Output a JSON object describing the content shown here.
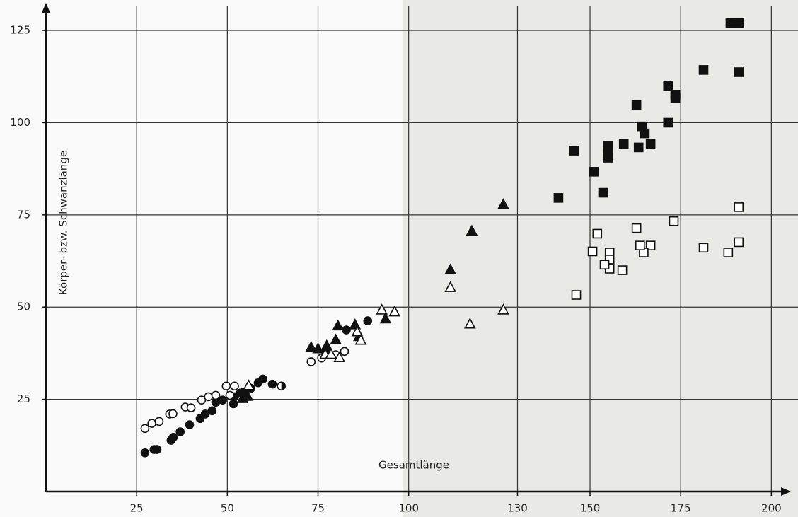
{
  "chart_data": {
    "type": "scatter",
    "xlabel": "Gesamtlänge",
    "ylabel": "Körper- bzw. Schwanzlänge",
    "xlim": [
      0,
      205
    ],
    "ylim": [
      0,
      130
    ],
    "xticks": [
      25,
      50,
      75,
      100,
      130,
      150,
      175,
      200
    ],
    "yticks": [
      25,
      50,
      75,
      100,
      125
    ],
    "grid": true,
    "series": [
      {
        "marker": "circle",
        "filled": true,
        "color": "#111111",
        "x": [
          27.3,
          29.8,
          30.6,
          34.5,
          35.1,
          37,
          39.6,
          42.5,
          43.9,
          45.8,
          46.8,
          48.7,
          51.7,
          52,
          53.6,
          54.6,
          56.5,
          58.5,
          59.8,
          62.4,
          77,
          82.8,
          88.7
        ],
        "values": [
          10.5,
          11.4,
          11.4,
          13.9,
          14.7,
          16.2,
          18.1,
          19.8,
          21,
          21.9,
          24.2,
          24.8,
          23.8,
          25.7,
          26.7,
          27,
          28,
          29.5,
          30.5,
          29.1,
          38,
          43.8,
          46.3
        ]
      },
      {
        "marker": "circle",
        "filled": false,
        "color": "#111111",
        "x": [
          27.3,
          29.2,
          31.2,
          34.1,
          35,
          38.4,
          40,
          42.9,
          44.8,
          46.8,
          49.7,
          52,
          50.7,
          73.1,
          76,
          79.9,
          82.3
        ],
        "values": [
          17.1,
          18.5,
          19,
          21,
          21.1,
          22.9,
          22.7,
          24.8,
          25.7,
          26.1,
          28.6,
          28.6,
          26.1,
          35.2,
          36.2,
          37.1,
          38
        ]
      },
      {
        "marker": "halfcircle",
        "filled": true,
        "color": "#111111",
        "x": [
          64.9
        ],
        "values": [
          28.6
        ]
      },
      {
        "marker": "triangle",
        "filled": true,
        "color": "#111111",
        "x": [
          54.2,
          55.6,
          73.1,
          75,
          77.4,
          79.9,
          80.5,
          85.2,
          86.3,
          93.6,
          111.5,
          117.4,
          126.1
        ],
        "values": [
          25.1,
          25.7,
          39,
          38.6,
          39.4,
          41,
          44.8,
          45.1,
          41.9,
          46.7,
          60,
          70.5,
          77.7
        ]
      },
      {
        "marker": "triangle",
        "filled": false,
        "color": "#111111",
        "x": [
          55.9,
          77,
          78.6,
          80.9,
          85.8,
          86.8,
          92.6,
          96.1,
          111.5,
          116.9,
          126.1
        ],
        "values": [
          28.6,
          37.1,
          37.1,
          36.2,
          43.2,
          40.9,
          49.1,
          48.6,
          55.2,
          45.3,
          49.1
        ]
      },
      {
        "marker": "square",
        "filled": true,
        "color": "#111111",
        "x": [
          188.7,
          191,
          181.3,
          191,
          171.5,
          173.5,
          173.5,
          162.8,
          164.3,
          165.1,
          171.5,
          155,
          155,
          155,
          159.3,
          163.4,
          166.7,
          145.6,
          151.1,
          153.6,
          141.3
        ],
        "values": [
          127,
          127,
          114.3,
          113.7,
          109.9,
          107.6,
          106.7,
          104.8,
          99,
          97.1,
          100,
          93.7,
          92.4,
          90.5,
          94.3,
          93.3,
          94.3,
          92.4,
          86.7,
          81,
          79.6
        ]
      },
      {
        "marker": "square",
        "filled": false,
        "color": "#111111",
        "x": [
          191,
          173.1,
          166.7,
          164.8,
          163.8,
          155.4,
          155.4,
          155.4,
          154,
          150.7,
          152,
          158.9,
          146.2,
          181.3,
          188.1,
          191,
          162.8
        ],
        "values": [
          77.1,
          73.3,
          66.7,
          64.8,
          66.7,
          64.8,
          62.9,
          60.4,
          61.5,
          65.1,
          69.9,
          60,
          53.3,
          66.1,
          64.8,
          67.6,
          71.4
        ]
      }
    ]
  }
}
